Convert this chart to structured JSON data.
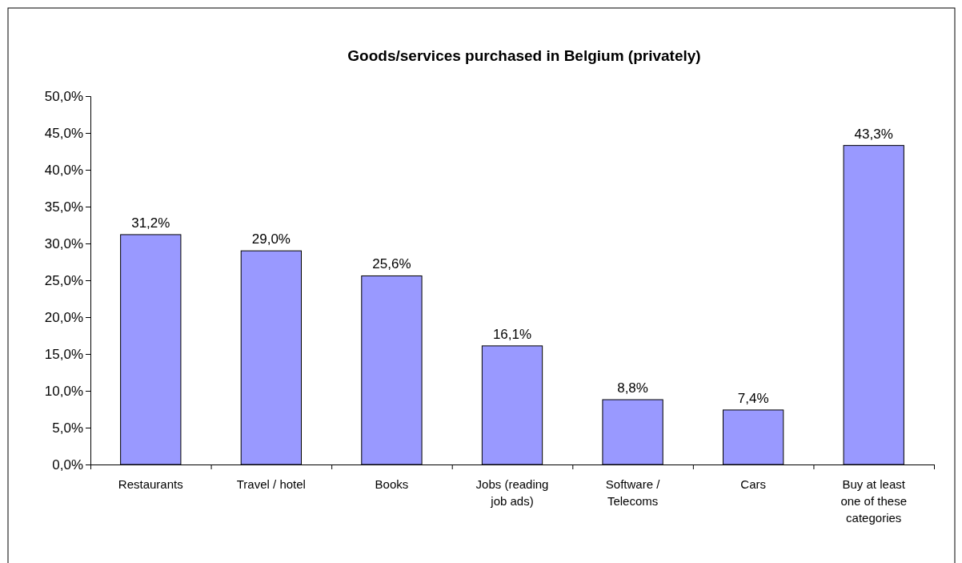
{
  "chart_data": {
    "type": "bar",
    "title": "Goods/services purchased in Belgium (privately)",
    "categories": [
      "Restaurants",
      "Travel / hotel",
      "Books",
      "Jobs (reading job ads)",
      "Software / Telecoms",
      "Cars",
      "Buy at least one of these categories"
    ],
    "values": [
      31.2,
      29.0,
      25.6,
      16.1,
      8.8,
      7.4,
      43.3
    ],
    "value_labels": [
      "31,2%",
      "29,0%",
      "25,6%",
      "16,1%",
      "8,8%",
      "7,4%",
      "43,3%"
    ],
    "color": "#9999ff",
    "ylim": [
      0,
      50
    ],
    "yticks": [
      {
        "value": 0,
        "label": "0,0%"
      },
      {
        "value": 5,
        "label": "5,0%"
      },
      {
        "value": 10,
        "label": "10,0%"
      },
      {
        "value": 15,
        "label": "15,0%"
      },
      {
        "value": 20,
        "label": "20,0%"
      },
      {
        "value": 25,
        "label": "25,0%"
      },
      {
        "value": 30,
        "label": "30,0%"
      },
      {
        "value": 35,
        "label": "35,0%"
      },
      {
        "value": 40,
        "label": "40,0%"
      },
      {
        "value": 45,
        "label": "45,0%"
      },
      {
        "value": 50,
        "label": "50,0%"
      }
    ],
    "grid": false
  }
}
